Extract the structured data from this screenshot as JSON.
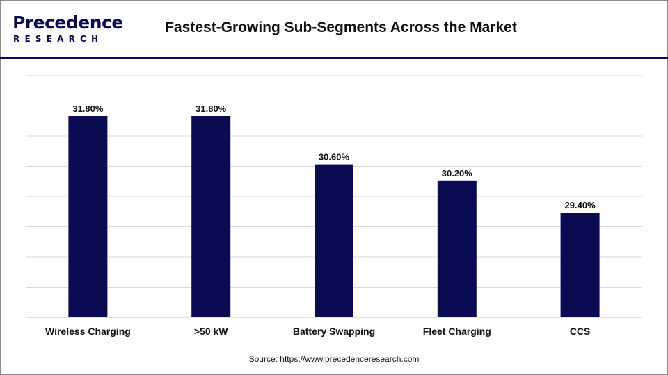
{
  "header": {
    "logo_main": "Precedence",
    "logo_sub": "RESEARCH",
    "title": "Fastest-Growing Sub-Segments Across the Market"
  },
  "source": "Source: https://www.precedenceresearch.com",
  "colors": {
    "bar": "#0b0b52",
    "accent": "#0b0b52",
    "grid": "#d9d9d9"
  },
  "chart_data": {
    "type": "bar",
    "title": "Fastest-Growing Sub-Segments Across the Market",
    "categories": [
      "Wireless Charging",
      ">50 kW",
      "Battery Swapping",
      "Fleet Charging",
      "CCS"
    ],
    "values": [
      31.8,
      31.8,
      30.6,
      30.2,
      29.4
    ],
    "data_labels": [
      "31.80%",
      "31.80%",
      "30.60%",
      "30.20%",
      "29.40%"
    ],
    "xlabel": "",
    "ylabel": "",
    "ylim": [
      26.8,
      32.8
    ],
    "grid": true
  }
}
